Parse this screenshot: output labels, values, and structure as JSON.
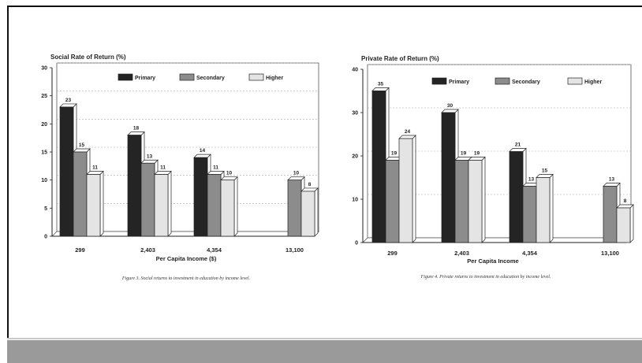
{
  "colors": {
    "primary": "#242424",
    "secondary": "#8c8c8c",
    "higher": "#e4e4e4",
    "footer": "#9a9a9a"
  },
  "chart_data": [
    {
      "type": "bar",
      "title": "Social Rate of Return (%)",
      "xlabel": "Per Capita Income ($)",
      "ylabel": "",
      "ylim": [
        0,
        30
      ],
      "yticks": [
        "0",
        "5",
        "10",
        "15",
        "20",
        "25",
        "30"
      ],
      "categories": [
        "299",
        "2,403",
        "4,354",
        "13,100"
      ],
      "series": [
        {
          "name": "Primary",
          "values": [
            23,
            18,
            14,
            null
          ]
        },
        {
          "name": "Secondary",
          "values": [
            15,
            13,
            11,
            10
          ]
        },
        {
          "name": "Higher",
          "values": [
            11,
            11,
            10,
            8
          ]
        }
      ],
      "legend": "top",
      "grid": true,
      "caption": "Figure 3. Social returns to investment in education by income level."
    },
    {
      "type": "bar",
      "title": "Private Rate of Return (%)",
      "xlabel": "Per Capita Income",
      "ylabel": "",
      "ylim": [
        0,
        40
      ],
      "yticks": [
        "0",
        "10",
        "20",
        "30",
        "40"
      ],
      "categories": [
        "299",
        "2,403",
        "4,354",
        "13,100"
      ],
      "series": [
        {
          "name": "Primary",
          "values": [
            35,
            30,
            21,
            null
          ]
        },
        {
          "name": "Secondary",
          "values": [
            19,
            19,
            13,
            13
          ]
        },
        {
          "name": "Higher",
          "values": [
            24,
            19,
            15,
            8
          ]
        }
      ],
      "legend": "top",
      "grid": true,
      "caption": "Figure 4. Private returns to investment in education by income level."
    }
  ]
}
